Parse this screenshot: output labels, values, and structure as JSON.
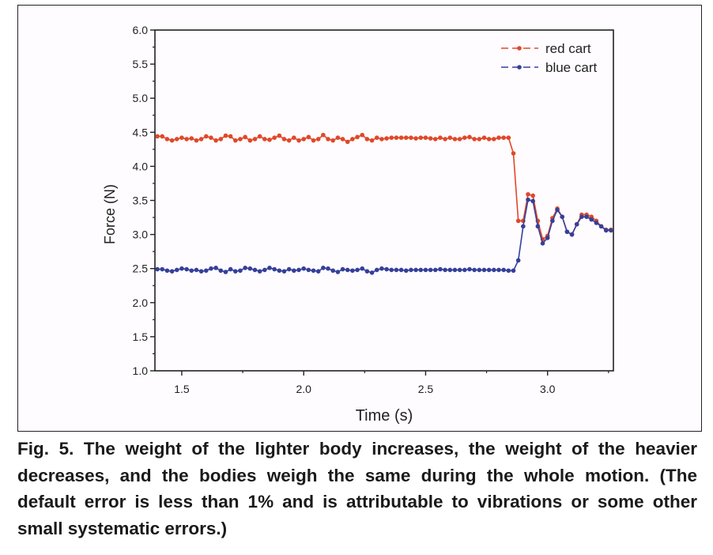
{
  "chart_data": {
    "type": "line",
    "xlabel": "Time (s)",
    "ylabel": "Force (N)",
    "xlim": [
      1.39,
      3.27
    ],
    "ylim": [
      1.0,
      6.0
    ],
    "xticks": [
      "1.5",
      "2.0",
      "2.5",
      "3.0"
    ],
    "yticks": [
      "1.0",
      "1.5",
      "2.0",
      "2.5",
      "3.0",
      "3.5",
      "4.0",
      "4.5",
      "5.0",
      "5.5",
      "6.0"
    ],
    "grid": false,
    "legend_position": "top-right",
    "x": [
      1.4,
      1.42,
      1.44,
      1.46,
      1.48,
      1.5,
      1.52,
      1.54,
      1.56,
      1.58,
      1.6,
      1.62,
      1.64,
      1.66,
      1.68,
      1.7,
      1.72,
      1.74,
      1.76,
      1.78,
      1.8,
      1.82,
      1.84,
      1.86,
      1.88,
      1.9,
      1.92,
      1.94,
      1.96,
      1.98,
      2.0,
      2.02,
      2.04,
      2.06,
      2.08,
      2.1,
      2.12,
      2.14,
      2.16,
      2.18,
      2.2,
      2.22,
      2.24,
      2.26,
      2.28,
      2.3,
      2.32,
      2.34,
      2.36,
      2.38,
      2.4,
      2.42,
      2.44,
      2.46,
      2.48,
      2.5,
      2.52,
      2.54,
      2.56,
      2.58,
      2.6,
      2.62,
      2.64,
      2.66,
      2.68,
      2.7,
      2.72,
      2.74,
      2.76,
      2.78,
      2.8,
      2.82,
      2.84,
      2.86,
      2.88,
      2.9,
      2.92,
      2.94,
      2.96,
      2.98,
      3.0,
      3.02,
      3.04,
      3.06,
      3.08,
      3.1,
      3.12,
      3.14,
      3.16,
      3.18,
      3.2,
      3.22,
      3.24,
      3.26
    ],
    "series": [
      {
        "name": "red cart",
        "color": "#e0482a",
        "values": [
          4.44,
          4.44,
          4.4,
          4.38,
          4.4,
          4.42,
          4.4,
          4.41,
          4.38,
          4.4,
          4.44,
          4.42,
          4.38,
          4.4,
          4.45,
          4.44,
          4.38,
          4.4,
          4.43,
          4.38,
          4.4,
          4.44,
          4.4,
          4.39,
          4.42,
          4.45,
          4.4,
          4.38,
          4.42,
          4.38,
          4.4,
          4.43,
          4.38,
          4.4,
          4.46,
          4.4,
          4.38,
          4.42,
          4.4,
          4.36,
          4.4,
          4.43,
          4.46,
          4.4,
          4.38,
          4.42,
          4.4,
          4.41,
          4.42,
          4.42,
          4.42,
          4.42,
          4.42,
          4.41,
          4.42,
          4.42,
          4.41,
          4.4,
          4.42,
          4.4,
          4.42,
          4.4,
          4.4,
          4.42,
          4.43,
          4.4,
          4.4,
          4.42,
          4.4,
          4.4,
          4.42,
          4.42,
          4.42,
          4.19,
          3.2,
          3.2,
          3.59,
          3.57,
          3.2,
          2.93,
          2.98,
          3.24,
          3.38,
          3.26,
          3.04,
          3.0,
          3.15,
          3.29,
          3.29,
          3.26,
          3.2,
          3.12,
          3.07,
          3.07
        ]
      },
      {
        "name": "blue cart",
        "color": "#35409a",
        "values": [
          2.49,
          2.49,
          2.47,
          2.46,
          2.48,
          2.5,
          2.49,
          2.47,
          2.48,
          2.46,
          2.47,
          2.5,
          2.51,
          2.47,
          2.45,
          2.49,
          2.46,
          2.47,
          2.51,
          2.5,
          2.48,
          2.46,
          2.48,
          2.51,
          2.49,
          2.47,
          2.46,
          2.49,
          2.47,
          2.48,
          2.5,
          2.48,
          2.47,
          2.46,
          2.51,
          2.5,
          2.47,
          2.45,
          2.49,
          2.48,
          2.47,
          2.48,
          2.5,
          2.46,
          2.44,
          2.48,
          2.5,
          2.49,
          2.48,
          2.48,
          2.48,
          2.47,
          2.48,
          2.48,
          2.48,
          2.48,
          2.48,
          2.48,
          2.49,
          2.48,
          2.48,
          2.48,
          2.48,
          2.48,
          2.49,
          2.48,
          2.48,
          2.48,
          2.48,
          2.48,
          2.48,
          2.48,
          2.47,
          2.47,
          2.62,
          3.12,
          3.51,
          3.49,
          3.12,
          2.87,
          2.95,
          3.2,
          3.36,
          3.26,
          3.04,
          3.0,
          3.15,
          3.26,
          3.26,
          3.22,
          3.17,
          3.12,
          3.06,
          3.06
        ]
      }
    ]
  },
  "caption": "Fig. 5. The weight of the lighter body increases, the weight of the heavier decreases, and the bodies weigh the same during the whole motion. (The default error is less than 1% and is attributable to vibrations or some other small systematic errors.)"
}
